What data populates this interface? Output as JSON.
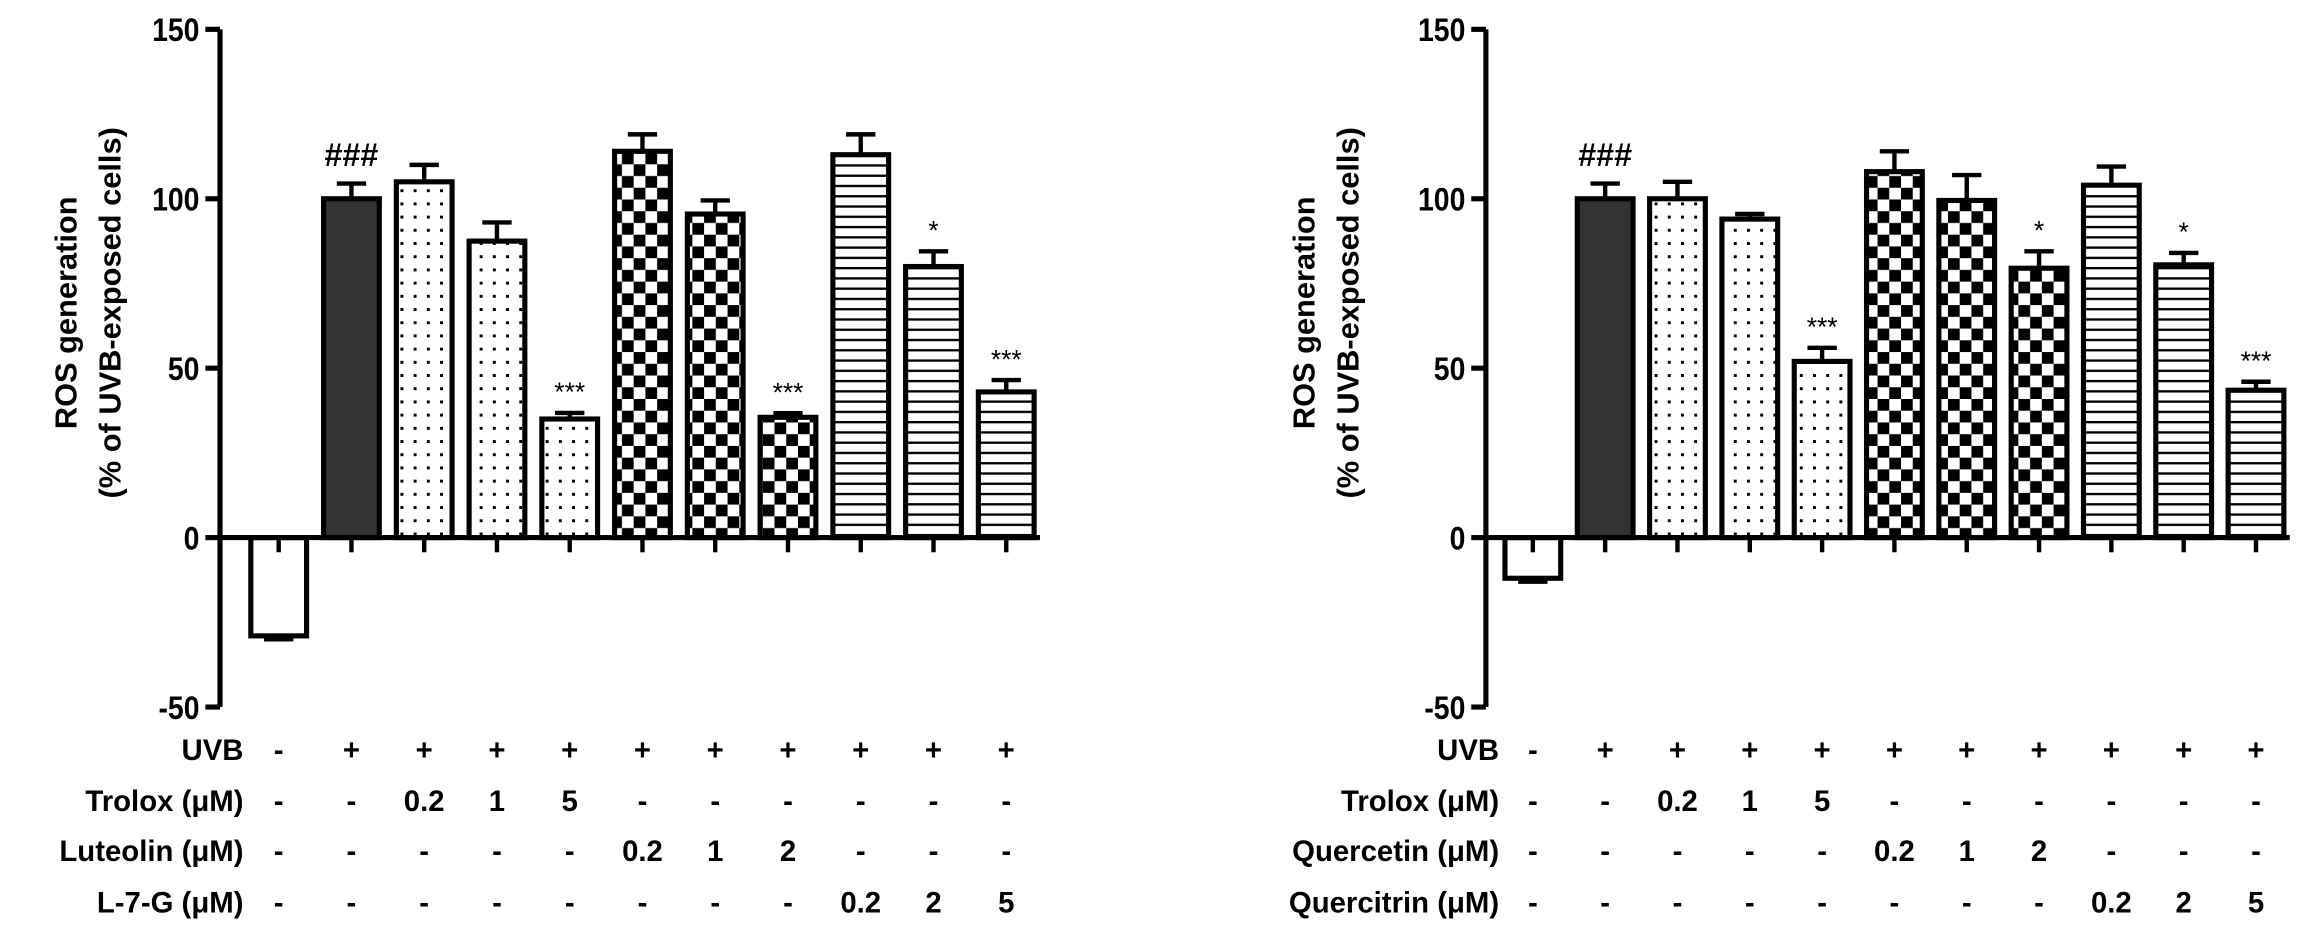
{
  "chart_data": [
    {
      "type": "bar",
      "ylabel": [
        "ROS generation",
        "(% of UVB-exposed cells)"
      ],
      "ylim": [
        -50,
        150
      ],
      "yticks": [
        "150",
        "100",
        "50",
        "0",
        "-50"
      ],
      "ytick_values": [
        150,
        100,
        50,
        0,
        -50
      ],
      "values": [
        -29,
        100,
        105,
        87.5,
        35,
        114,
        95.5,
        35.5,
        113,
        80,
        43
      ],
      "errors": [
        1,
        4.5,
        5,
        5.5,
        1.8,
        5,
        4,
        1.2,
        6,
        4.5,
        3.5
      ],
      "patterns": [
        "empty",
        "solid",
        "dots",
        "dots",
        "dots",
        "checker",
        "checker",
        "checker",
        "stripes",
        "stripes",
        "stripes"
      ],
      "annotations": [
        "",
        "###",
        "",
        "",
        "***",
        "",
        "",
        "***",
        "",
        "*",
        "***"
      ],
      "treatments": [
        {
          "label": "UVB",
          "values": [
            "-",
            "+",
            "+",
            "+",
            "+",
            "+",
            "+",
            "+",
            "+",
            "+",
            "+"
          ]
        },
        {
          "label": "Trolox (μM)",
          "values": [
            "-",
            "-",
            "0.2",
            "1",
            "5",
            "-",
            "-",
            "-",
            "-",
            "-",
            "-"
          ]
        },
        {
          "label": "Luteolin (μM)",
          "values": [
            "-",
            "-",
            "-",
            "-",
            "-",
            "0.2",
            "1",
            "2",
            "-",
            "-",
            "-"
          ]
        },
        {
          "label": "L-7-G (μM)",
          "values": [
            "-",
            "-",
            "-",
            "-",
            "-",
            "-",
            "-",
            "-",
            "0.2",
            "2",
            "5"
          ]
        }
      ]
    },
    {
      "type": "bar",
      "ylabel": [
        "ROS generation",
        "(% of UVB-exposed cells)"
      ],
      "ylim": [
        -50,
        150
      ],
      "yticks": [
        "150",
        "100",
        "50",
        "0",
        "-50"
      ],
      "ytick_values": [
        150,
        100,
        50,
        0,
        -50
      ],
      "values": [
        -12,
        100,
        100,
        94,
        52,
        108,
        99.5,
        79.5,
        104,
        80.5,
        43.5
      ],
      "errors": [
        1,
        4.5,
        5,
        1.5,
        4,
        6,
        7.5,
        5,
        5.5,
        3.5,
        2.5
      ],
      "patterns": [
        "empty",
        "solid",
        "dots",
        "dots",
        "dots",
        "checker",
        "checker",
        "checker",
        "stripes",
        "stripes",
        "stripes"
      ],
      "annotations": [
        "",
        "###",
        "",
        "",
        "***",
        "",
        "",
        "*",
        "",
        "*",
        "***"
      ],
      "treatments": [
        {
          "label": "UVB",
          "values": [
            "-",
            "+",
            "+",
            "+",
            "+",
            "+",
            "+",
            "+",
            "+",
            "+",
            "+"
          ]
        },
        {
          "label": "Trolox (μM)",
          "values": [
            "-",
            "-",
            "0.2",
            "1",
            "5",
            "-",
            "-",
            "-",
            "-",
            "-",
            "-"
          ]
        },
        {
          "label": "Quercetin (μM)",
          "values": [
            "-",
            "-",
            "-",
            "-",
            "-",
            "0.2",
            "1",
            "2",
            "-",
            "-",
            "-"
          ]
        },
        {
          "label": "Quercitrin (μM)",
          "values": [
            "-",
            "-",
            "-",
            "-",
            "-",
            "-",
            "-",
            "-",
            "0.2",
            "2",
            "5"
          ]
        }
      ]
    }
  ],
  "colors": {
    "solid_bar": "#333333",
    "outline": "#000000",
    "background": "#ffffff"
  }
}
